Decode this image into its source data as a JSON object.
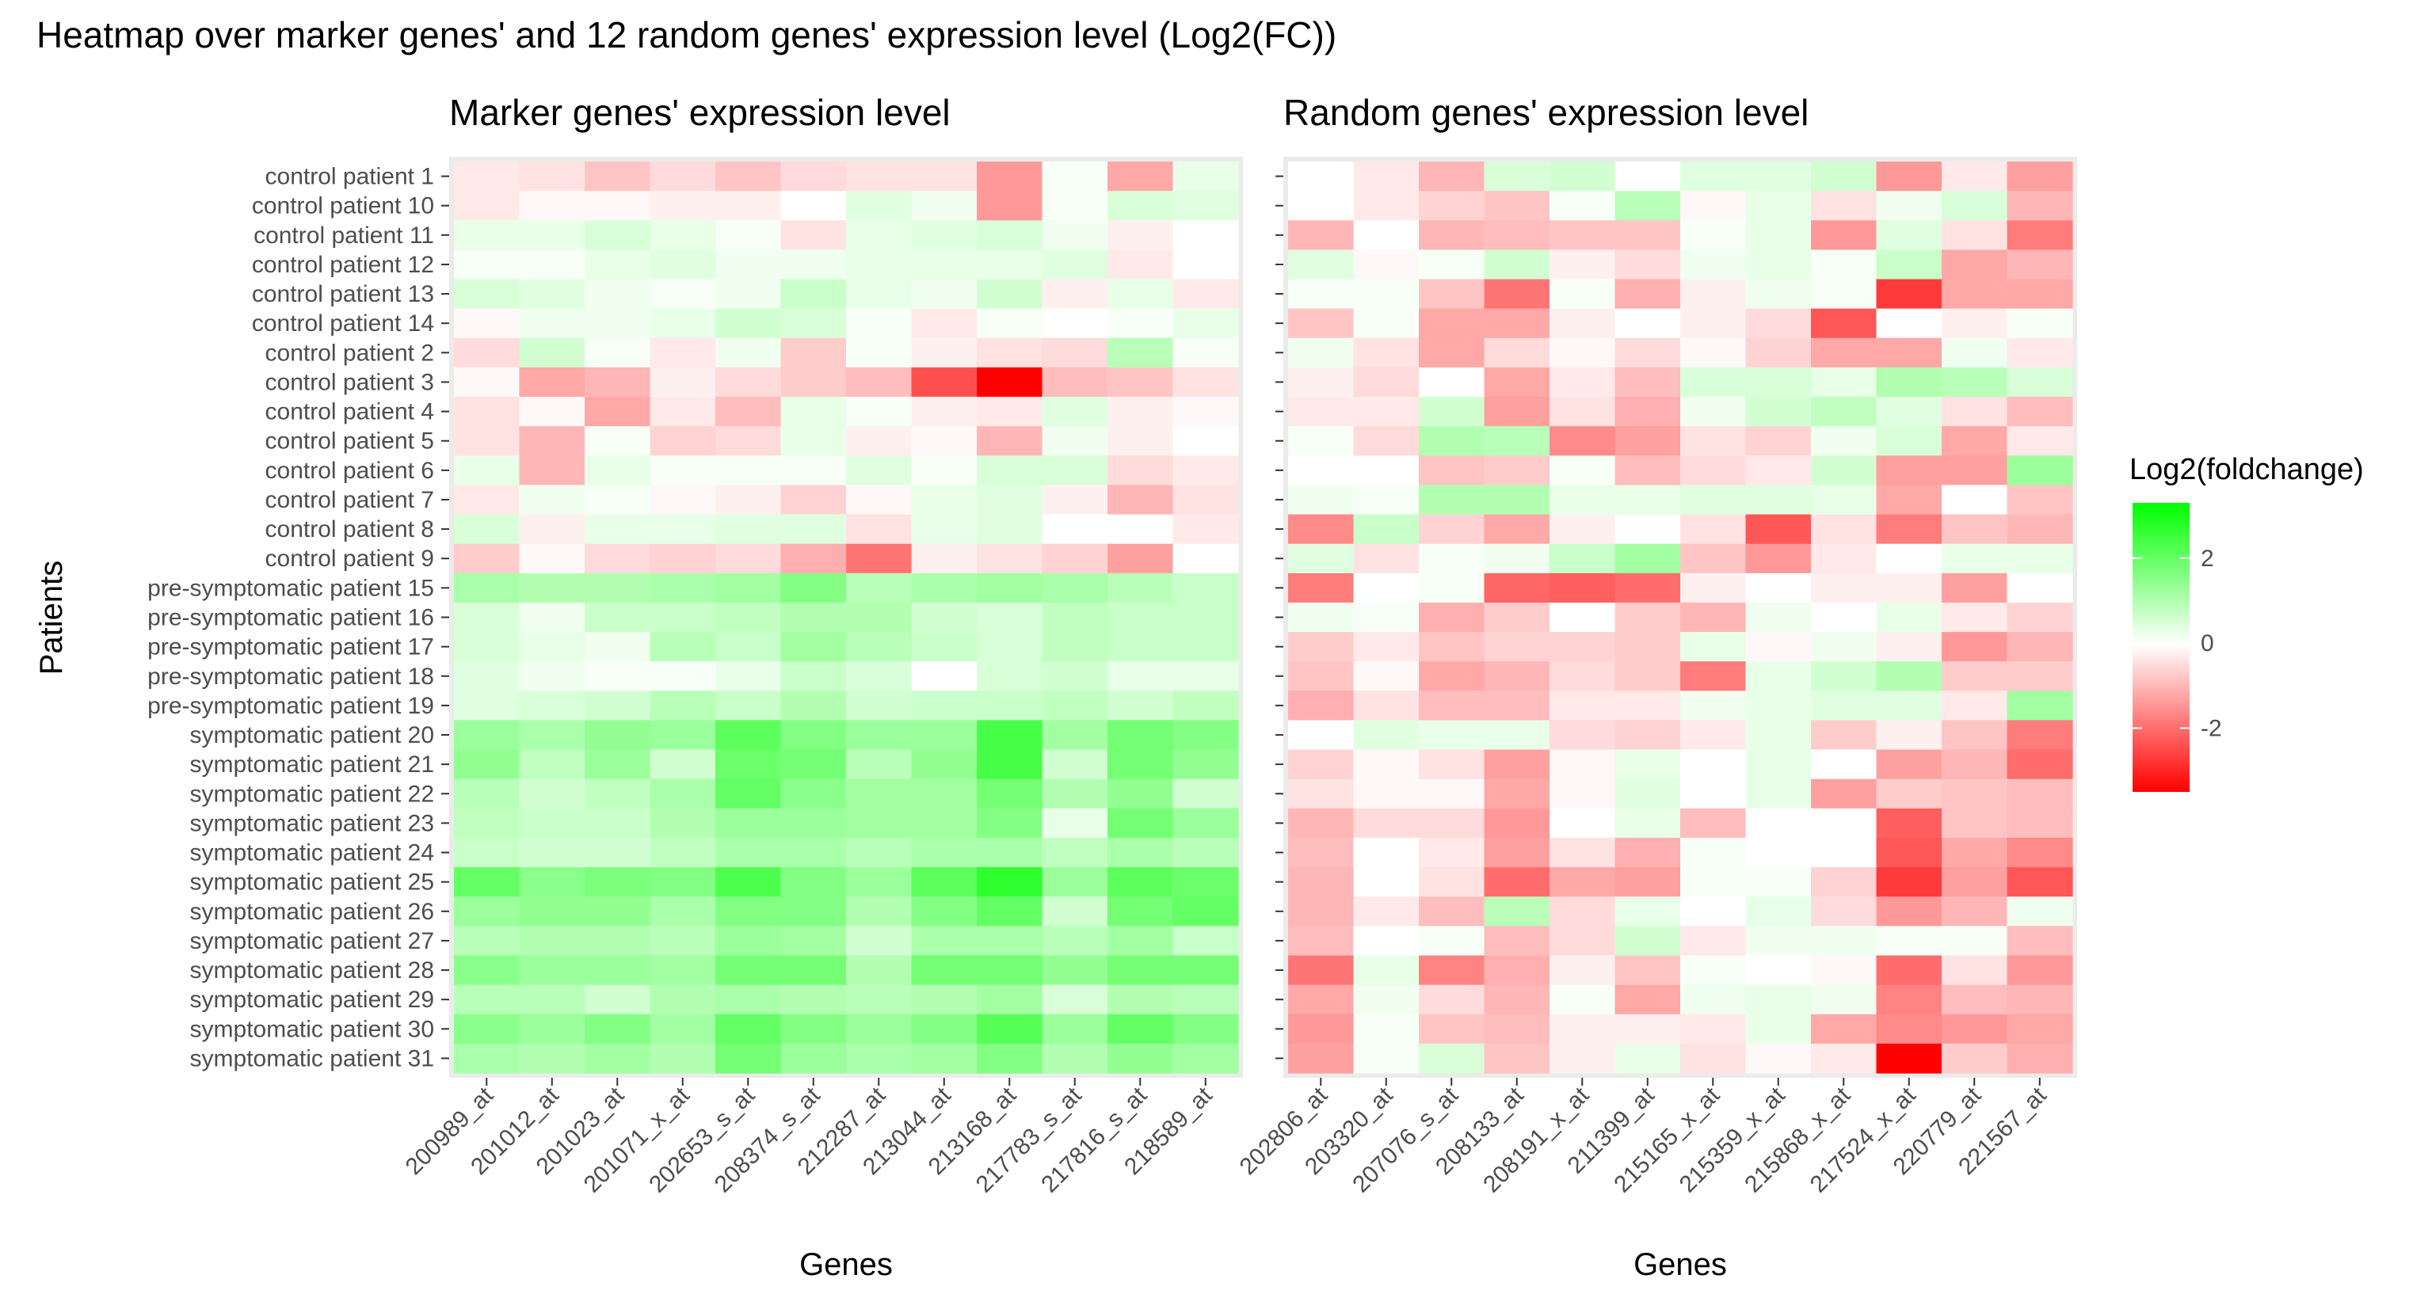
{
  "title": "Heatmap over marker genes' and 12 random genes' expression level (Log2(FC))",
  "chart_data": {
    "type": "heatmap",
    "ylabel": "Patients",
    "patients": [
      "control patient 1",
      "control patient 10",
      "control patient 11",
      "control patient 12",
      "control patient 13",
      "control patient 14",
      "control patient 2",
      "control patient 3",
      "control patient 4",
      "control patient 5",
      "control patient 6",
      "control patient 7",
      "control patient 8",
      "control patient 9",
      "pre-symptomatic patient 15",
      "pre-symptomatic patient 16",
      "pre-symptomatic patient 17",
      "pre-symptomatic patient 18",
      "pre-symptomatic patient 19",
      "symptomatic patient 20",
      "symptomatic patient 21",
      "symptomatic patient 22",
      "symptomatic patient 23",
      "symptomatic patient 24",
      "symptomatic patient 25",
      "symptomatic patient 26",
      "symptomatic patient 27",
      "symptomatic patient 28",
      "symptomatic patient 29",
      "symptomatic patient 30",
      "symptomatic patient 31"
    ],
    "legend": {
      "title": "Log2(foldchange)",
      "ticks": [
        2,
        0,
        -2
      ],
      "min": -3.5,
      "max": 3.3,
      "low_color": "#ff0000",
      "mid_color": "#ffffff",
      "high_color": "#00ff00"
    },
    "panels": [
      {
        "title": "Marker genes' expression level",
        "xlabel": "Genes",
        "genes": [
          "200989_at",
          "201012_at",
          "201023_at",
          "201071_x_at",
          "202653_s_at",
          "208374_s_at",
          "212287_at",
          "213044_at",
          "213168_at",
          "217783_s_at",
          "217816_s_at",
          "218589_at"
        ],
        "values": [
          [
            -0.3,
            -0.4,
            -0.8,
            -0.5,
            -0.8,
            -0.5,
            -0.4,
            -0.4,
            -1.4,
            0.1,
            -1.2,
            0.3
          ],
          [
            -0.3,
            -0.1,
            -0.1,
            -0.2,
            -0.2,
            0.0,
            0.4,
            0.2,
            -1.4,
            0.1,
            0.5,
            0.4
          ],
          [
            0.3,
            0.3,
            0.5,
            0.3,
            0.1,
            -0.4,
            0.3,
            0.4,
            0.5,
            0.2,
            -0.2,
            0.0
          ],
          [
            0.1,
            0.1,
            0.3,
            0.4,
            0.2,
            0.2,
            0.3,
            0.3,
            0.3,
            0.4,
            -0.3,
            0.0
          ],
          [
            0.5,
            0.4,
            0.2,
            0.1,
            0.2,
            0.7,
            0.3,
            0.2,
            0.6,
            -0.2,
            0.3,
            -0.3
          ],
          [
            -0.1,
            0.2,
            0.2,
            0.3,
            0.6,
            0.5,
            0.1,
            -0.3,
            0.1,
            0.0,
            0.1,
            0.3
          ],
          [
            -0.5,
            0.6,
            0.1,
            -0.3,
            0.2,
            -0.7,
            0.1,
            -0.2,
            -0.4,
            -0.5,
            0.9,
            0.1
          ],
          [
            -0.1,
            -1.2,
            -1.0,
            -0.2,
            -0.5,
            -0.7,
            -0.9,
            -2.4,
            -3.5,
            -0.9,
            -0.8,
            -0.4
          ],
          [
            -0.4,
            -0.1,
            -1.2,
            -0.3,
            -0.9,
            0.3,
            0.1,
            -0.2,
            -0.3,
            0.4,
            -0.2,
            -0.1
          ],
          [
            -0.4,
            -1.0,
            0.1,
            -0.6,
            -0.5,
            0.3,
            -0.2,
            -0.1,
            -1.0,
            0.2,
            -0.2,
            0.0
          ],
          [
            0.3,
            -1.0,
            0.3,
            0.1,
            0.1,
            0.1,
            0.4,
            0.1,
            0.5,
            0.5,
            -0.5,
            -0.3
          ],
          [
            -0.3,
            0.2,
            0.1,
            -0.1,
            -0.2,
            -0.6,
            -0.1,
            0.3,
            0.4,
            -0.2,
            -1.0,
            -0.4
          ],
          [
            0.5,
            -0.2,
            0.3,
            0.3,
            0.4,
            0.4,
            -0.4,
            0.3,
            0.4,
            0.0,
            0.0,
            -0.3
          ],
          [
            -0.7,
            -0.1,
            -0.5,
            -0.6,
            -0.5,
            -1.1,
            -1.9,
            -0.2,
            -0.4,
            -0.6,
            -1.3,
            0.0
          ],
          [
            1.1,
            1.0,
            1.0,
            1.1,
            1.2,
            1.6,
            0.9,
            1.1,
            1.2,
            1.1,
            0.9,
            0.7
          ],
          [
            0.5,
            0.2,
            0.7,
            0.7,
            0.8,
            1.0,
            1.0,
            0.6,
            0.5,
            0.8,
            0.7,
            0.7
          ],
          [
            0.5,
            0.3,
            0.2,
            0.9,
            0.7,
            1.2,
            0.9,
            0.7,
            0.5,
            0.8,
            0.7,
            0.7
          ],
          [
            0.4,
            0.2,
            0.1,
            0.1,
            0.3,
            0.7,
            0.5,
            0.0,
            0.5,
            0.6,
            0.3,
            0.3
          ],
          [
            0.4,
            0.5,
            0.6,
            0.9,
            0.7,
            1.0,
            0.6,
            0.7,
            0.7,
            0.8,
            0.6,
            0.8
          ],
          [
            1.3,
            1.1,
            1.4,
            1.3,
            2.1,
            1.6,
            1.3,
            1.3,
            2.4,
            1.2,
            1.8,
            1.6
          ],
          [
            1.4,
            0.8,
            1.3,
            0.6,
            1.9,
            1.8,
            0.9,
            1.4,
            2.4,
            0.6,
            1.8,
            1.4
          ],
          [
            0.9,
            0.6,
            0.8,
            1.1,
            2.0,
            1.5,
            1.2,
            1.2,
            1.8,
            1.0,
            1.4,
            0.6
          ],
          [
            0.8,
            0.7,
            0.7,
            1.0,
            1.3,
            1.3,
            1.2,
            1.2,
            1.6,
            0.3,
            1.8,
            1.3
          ],
          [
            0.7,
            0.6,
            0.6,
            0.8,
            1.1,
            1.1,
            0.9,
            1.1,
            1.1,
            0.8,
            1.1,
            0.9
          ],
          [
            2.0,
            1.5,
            1.7,
            1.6,
            2.3,
            1.6,
            1.3,
            2.1,
            2.7,
            1.3,
            2.1,
            1.9
          ],
          [
            1.3,
            1.4,
            1.4,
            1.1,
            1.6,
            1.6,
            1.0,
            1.6,
            2.0,
            0.6,
            1.8,
            2.0
          ],
          [
            0.9,
            1.0,
            1.0,
            0.9,
            1.3,
            1.2,
            0.6,
            1.1,
            1.1,
            0.9,
            1.2,
            0.7
          ],
          [
            1.5,
            1.3,
            1.3,
            1.2,
            1.8,
            1.8,
            1.0,
            1.8,
            1.8,
            1.4,
            1.8,
            1.8
          ],
          [
            0.9,
            0.9,
            0.6,
            1.0,
            1.1,
            1.0,
            0.9,
            1.0,
            1.2,
            0.5,
            1.0,
            0.9
          ],
          [
            1.5,
            1.3,
            1.6,
            1.2,
            2.0,
            1.6,
            1.3,
            1.6,
            2.2,
            1.3,
            2.0,
            1.6
          ],
          [
            1.1,
            1.0,
            1.2,
            1.0,
            1.8,
            1.3,
            1.1,
            1.2,
            1.6,
            1.0,
            1.4,
            1.2
          ]
        ]
      },
      {
        "title": "Random genes' expression level",
        "xlabel": "Genes",
        "genes": [
          "202806_at",
          "203320_at",
          "207076_s_at",
          "208133_at",
          "208191_x_at",
          "211399_at",
          "215165_x_at",
          "215359_x_at",
          "215868_x_at",
          "217524_x_at",
          "220779_at",
          "221567_at"
        ],
        "values": [
          [
            0.0,
            -0.3,
            -1.0,
            0.5,
            0.6,
            0.0,
            0.4,
            0.4,
            0.6,
            -1.4,
            -0.3,
            -1.3
          ],
          [
            0.0,
            -0.3,
            -0.6,
            -0.8,
            0.1,
            0.9,
            -0.1,
            0.3,
            -0.4,
            0.2,
            0.5,
            -1.0
          ],
          [
            -1.0,
            0.0,
            -1.0,
            -0.9,
            -0.8,
            -0.8,
            0.1,
            0.3,
            -1.4,
            0.4,
            -0.4,
            -1.8
          ],
          [
            0.4,
            -0.1,
            0.1,
            0.6,
            -0.2,
            -0.5,
            0.2,
            0.3,
            0.1,
            0.7,
            -1.2,
            -1.0
          ],
          [
            0.1,
            0.1,
            -0.8,
            -1.9,
            0.1,
            -1.1,
            -0.2,
            0.2,
            0.1,
            -2.7,
            -1.2,
            -1.2
          ],
          [
            -0.8,
            0.1,
            -1.2,
            -1.2,
            -0.2,
            0.0,
            -0.2,
            -0.5,
            -2.3,
            0.0,
            -0.2,
            0.1
          ],
          [
            0.2,
            -0.4,
            -1.2,
            -0.5,
            -0.1,
            -0.5,
            -0.1,
            -0.6,
            -1.2,
            -1.2,
            0.2,
            -0.3
          ],
          [
            -0.2,
            -0.5,
            0.0,
            -1.2,
            -0.3,
            -0.9,
            0.5,
            0.5,
            0.3,
            1.0,
            0.9,
            0.5
          ],
          [
            -0.3,
            -0.3,
            0.6,
            -1.3,
            -0.4,
            -1.1,
            0.2,
            0.6,
            0.8,
            0.4,
            -0.4,
            -0.9
          ],
          [
            0.1,
            -0.5,
            1.0,
            0.9,
            -1.6,
            -1.3,
            -0.4,
            -0.6,
            0.2,
            0.5,
            -1.2,
            -0.3
          ],
          [
            0.0,
            0.0,
            -0.8,
            -0.7,
            0.1,
            -0.9,
            -0.5,
            -0.3,
            0.6,
            -1.3,
            -1.3,
            1.3
          ],
          [
            0.2,
            0.1,
            1.0,
            1.0,
            0.3,
            0.3,
            0.4,
            0.4,
            0.3,
            -1.2,
            0.0,
            -0.8
          ],
          [
            -1.6,
            0.7,
            -0.6,
            -1.2,
            -0.2,
            0.0,
            -0.4,
            -2.3,
            -0.4,
            -1.8,
            -0.8,
            -1.0
          ],
          [
            0.4,
            -0.4,
            0.1,
            0.2,
            0.7,
            1.2,
            -0.8,
            -1.4,
            -0.3,
            0.0,
            0.3,
            0.3
          ],
          [
            -1.8,
            0.0,
            0.1,
            -2.1,
            -2.2,
            -2.0,
            -0.2,
            0.0,
            -0.2,
            -0.2,
            -1.3,
            0.0
          ],
          [
            0.2,
            0.1,
            -1.1,
            -0.7,
            0.0,
            -0.7,
            -1.0,
            0.2,
            0.0,
            0.3,
            -0.3,
            -0.6
          ],
          [
            -0.7,
            -0.3,
            -0.8,
            -0.6,
            -0.6,
            -0.7,
            0.3,
            -0.1,
            0.2,
            -0.2,
            -1.4,
            -1.0
          ],
          [
            -0.8,
            -0.1,
            -1.2,
            -1.0,
            -0.5,
            -0.7,
            -1.8,
            0.3,
            0.6,
            1.0,
            -0.7,
            -0.7
          ],
          [
            -1.1,
            -0.4,
            -0.9,
            -0.9,
            -0.3,
            -0.3,
            0.2,
            0.3,
            0.4,
            0.4,
            -0.3,
            1.2
          ],
          [
            0.0,
            0.4,
            0.3,
            0.3,
            -0.5,
            -0.6,
            -0.3,
            0.3,
            -0.7,
            -0.2,
            -0.8,
            -1.8
          ],
          [
            -0.6,
            -0.1,
            -0.4,
            -1.3,
            -0.1,
            0.3,
            0.0,
            0.3,
            0.0,
            -1.3,
            -1.0,
            -2.0
          ],
          [
            -0.4,
            -0.1,
            -0.1,
            -1.2,
            -0.1,
            0.4,
            0.0,
            0.3,
            -1.3,
            -0.7,
            -0.8,
            -0.9
          ],
          [
            -1.0,
            -0.5,
            -0.5,
            -1.4,
            0.0,
            0.3,
            -0.9,
            0.0,
            0.0,
            -2.2,
            -0.8,
            -0.9
          ],
          [
            -0.9,
            0.0,
            -0.3,
            -1.3,
            -0.4,
            -1.1,
            0.1,
            0.0,
            0.0,
            -2.3,
            -1.2,
            -1.6
          ],
          [
            -1.0,
            0.0,
            -0.4,
            -2.0,
            -1.2,
            -1.3,
            0.1,
            0.1,
            -0.6,
            -2.7,
            -1.3,
            -2.3
          ],
          [
            -1.0,
            -0.3,
            -0.9,
            0.9,
            -0.5,
            0.3,
            0.0,
            0.3,
            -0.5,
            -1.4,
            -1.0,
            0.2
          ],
          [
            -0.9,
            0.0,
            0.1,
            -0.9,
            -0.5,
            0.6,
            -0.3,
            0.2,
            0.2,
            0.1,
            0.1,
            -0.9
          ],
          [
            -1.9,
            0.3,
            -1.7,
            -1.1,
            -0.2,
            -0.8,
            0.1,
            0.0,
            -0.1,
            -2.0,
            -0.4,
            -1.4
          ],
          [
            -1.2,
            0.2,
            -0.5,
            -1.0,
            0.1,
            -1.2,
            0.2,
            0.3,
            0.2,
            -1.7,
            -0.9,
            -1.0
          ],
          [
            -1.4,
            0.1,
            -0.8,
            -0.9,
            -0.2,
            -0.2,
            -0.3,
            0.3,
            -1.2,
            -1.6,
            -1.4,
            -1.2
          ],
          [
            -1.3,
            0.1,
            0.5,
            -0.8,
            -0.2,
            0.3,
            -0.4,
            -0.1,
            -0.3,
            -3.5,
            -0.7,
            -1.1
          ]
        ]
      }
    ]
  }
}
